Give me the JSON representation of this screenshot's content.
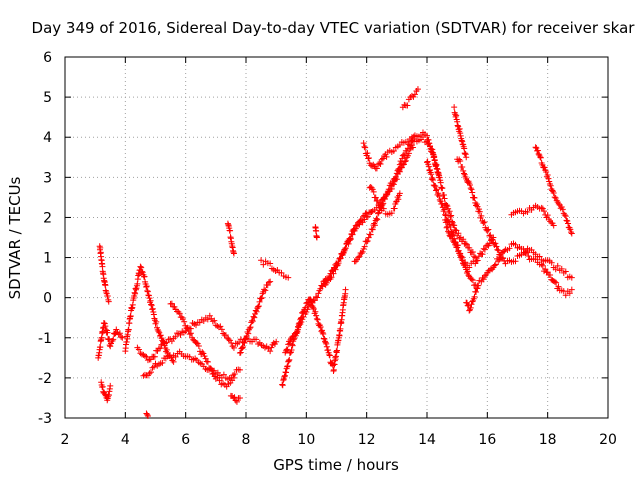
{
  "chart_data": {
    "type": "scatter",
    "title": "Day 349 of 2016, Sidereal Day-to-day VTEC variation (SDTVAR) for receiver skar",
    "xlabel": "GPS time / hours",
    "ylabel": "SDTVAR / TECUs",
    "xlim": [
      2,
      20
    ],
    "ylim": [
      -3,
      6
    ],
    "xticks": [
      "2",
      "4",
      "6",
      "8",
      "10",
      "12",
      "14",
      "16",
      "18",
      "20"
    ],
    "yticks": [
      "-3",
      "-2",
      "-1",
      "0",
      "1",
      "2",
      "3",
      "4",
      "5",
      "6"
    ],
    "grid": true,
    "marker": "+",
    "color": "#ff0000",
    "series": [
      {
        "name": "s1",
        "x": [
          3.1,
          3.3,
          3.5,
          3.7,
          3.9
        ],
        "y": [
          -1.5,
          -0.6,
          -1.2,
          -0.8,
          -1.0
        ]
      },
      {
        "name": "s2",
        "x": [
          3.15,
          3.25,
          3.35,
          3.45
        ],
        "y": [
          1.3,
          0.7,
          0.2,
          -0.1
        ]
      },
      {
        "name": "s3",
        "x": [
          3.2,
          3.3,
          3.4,
          3.5
        ],
        "y": [
          -2.1,
          -2.4,
          -2.6,
          -2.2
        ]
      },
      {
        "name": "s4",
        "x": [
          4.0,
          4.2,
          4.4,
          4.5,
          4.6,
          4.8,
          5.0,
          5.2,
          5.4,
          5.6
        ],
        "y": [
          -1.3,
          -0.3,
          0.4,
          0.8,
          0.6,
          0.0,
          -0.6,
          -1.0,
          -1.4,
          -1.6
        ]
      },
      {
        "name": "s5",
        "x": [
          4.4,
          4.8,
          5.2,
          5.6,
          6.0,
          6.4,
          6.8,
          7.2,
          7.6,
          8.0,
          8.4,
          8.8,
          9.0
        ],
        "y": [
          -1.3,
          -1.6,
          -1.2,
          -1.0,
          -0.8,
          -0.6,
          -0.5,
          -0.8,
          -1.2,
          -1.0,
          -1.1,
          -1.3,
          -1.1
        ]
      },
      {
        "name": "s6",
        "x": [
          4.6,
          5.0,
          5.4,
          5.8,
          6.2,
          6.6,
          7.0,
          7.4,
          7.8
        ],
        "y": [
          -2.0,
          -1.7,
          -1.5,
          -1.4,
          -1.5,
          -1.7,
          -1.9,
          -2.0,
          -1.8
        ]
      },
      {
        "name": "s7",
        "x": [
          4.7,
          4.75
        ],
        "y": [
          -2.9,
          -2.95
        ]
      },
      {
        "name": "s8",
        "x": [
          5.5,
          5.8,
          6.1,
          6.4,
          6.7,
          7.0,
          7.3,
          7.6
        ],
        "y": [
          -0.1,
          -0.4,
          -0.8,
          -1.2,
          -1.6,
          -2.0,
          -2.2,
          -2.0
        ]
      },
      {
        "name": "s9",
        "x": [
          7.4,
          7.5,
          7.6
        ],
        "y": [
          1.9,
          1.5,
          1.1
        ]
      },
      {
        "name": "s10",
        "x": [
          7.5,
          7.7,
          7.8
        ],
        "y": [
          -2.4,
          -2.6,
          -2.5
        ]
      },
      {
        "name": "s11",
        "x": [
          7.8,
          8.0,
          8.2,
          8.4,
          8.6,
          8.8
        ],
        "y": [
          -1.4,
          -1.0,
          -0.6,
          -0.2,
          0.2,
          0.4
        ]
      },
      {
        "name": "s12",
        "x": [
          8.5,
          8.8,
          9.1,
          9.4
        ],
        "y": [
          0.9,
          0.8,
          0.6,
          0.5
        ]
      },
      {
        "name": "s13",
        "x": [
          9.2,
          9.4,
          9.6,
          9.8,
          10.0,
          10.2,
          10.4,
          10.6,
          10.8,
          11.0,
          11.2,
          11.4,
          11.6,
          11.8,
          12.0
        ],
        "y": [
          -2.2,
          -1.6,
          -1.0,
          -0.6,
          -0.3,
          -0.1,
          0.1,
          0.4,
          0.6,
          0.8,
          1.1,
          1.4,
          1.7,
          1.9,
          2.1
        ]
      },
      {
        "name": "s14",
        "x": [
          9.3,
          9.5,
          9.7,
          9.9,
          10.1,
          10.3,
          10.5,
          10.7,
          10.9,
          11.1,
          11.3
        ],
        "y": [
          -1.4,
          -1.0,
          -0.8,
          -0.3,
          0.0,
          -0.4,
          -0.8,
          -1.3,
          -1.8,
          -0.9,
          0.2
        ]
      },
      {
        "name": "s15",
        "x": [
          10.3,
          10.35
        ],
        "y": [
          1.8,
          1.5
        ]
      },
      {
        "name": "s16",
        "x": [
          10.6,
          10.8,
          11.0,
          11.2,
          11.4,
          11.6,
          11.8,
          12.0,
          12.2,
          12.4,
          12.6,
          12.8,
          13.0,
          13.2,
          13.4,
          13.6,
          13.8,
          14.0,
          14.2,
          14.4
        ],
        "y": [
          0.3,
          0.5,
          0.8,
          1.1,
          1.4,
          1.7,
          1.9,
          2.0,
          2.2,
          2.3,
          2.5,
          2.7,
          3.0,
          3.3,
          3.6,
          3.9,
          4.0,
          3.9,
          3.6,
          3.0
        ]
      },
      {
        "name": "s17",
        "x": [
          11.6,
          11.8,
          12.0,
          12.2,
          12.4,
          12.6,
          12.8,
          13.0,
          13.2,
          13.4,
          13.6,
          13.8,
          14.0,
          14.2,
          14.4,
          14.6,
          14.8,
          15.0,
          15.2,
          15.4,
          15.6
        ],
        "y": [
          0.9,
          1.1,
          1.4,
          1.7,
          2.1,
          2.5,
          2.8,
          3.1,
          3.5,
          3.8,
          4.0,
          4.1,
          4.0,
          3.6,
          3.0,
          2.4,
          2.0,
          1.6,
          1.4,
          1.2,
          1.0
        ]
      },
      {
        "name": "s18",
        "x": [
          11.9,
          12.1,
          12.3,
          12.5,
          12.7,
          12.9,
          13.1,
          13.3,
          13.5
        ],
        "y": [
          3.8,
          3.4,
          3.2,
          3.4,
          3.6,
          3.7,
          3.8,
          3.9,
          4.0
        ]
      },
      {
        "name": "s19",
        "x": [
          12.1,
          12.3,
          12.5,
          12.7,
          12.9,
          13.1
        ],
        "y": [
          2.8,
          2.5,
          2.2,
          2.1,
          2.2,
          2.6
        ]
      },
      {
        "name": "s20",
        "x": [
          13.2,
          13.3,
          13.4,
          13.5,
          13.6,
          13.7
        ],
        "y": [
          4.7,
          4.8,
          4.9,
          5.0,
          5.1,
          5.2
        ]
      },
      {
        "name": "s21",
        "x": [
          14.0,
          14.2,
          14.4,
          14.6,
          14.8,
          15.0,
          15.2,
          15.4,
          15.6,
          15.8,
          16.0,
          16.2,
          16.4,
          16.6,
          16.8,
          17.0,
          17.2,
          17.4,
          17.6,
          17.8,
          18.0,
          18.2,
          18.4,
          18.6,
          18.8
        ],
        "y": [
          3.4,
          2.9,
          2.5,
          2.1,
          1.7,
          1.3,
          0.9,
          0.5,
          0.3,
          0.4,
          0.6,
          0.8,
          1.0,
          1.2,
          1.3,
          1.3,
          1.2,
          1.0,
          0.9,
          0.8,
          0.6,
          0.4,
          0.2,
          0.1,
          0.2
        ]
      },
      {
        "name": "s22",
        "x": [
          14.6,
          14.8,
          15.0,
          15.2,
          15.4,
          15.6,
          15.8,
          16.0,
          16.2
        ],
        "y": [
          1.9,
          1.5,
          1.2,
          0.9,
          0.8,
          0.9,
          1.1,
          1.3,
          1.5
        ]
      },
      {
        "name": "s23",
        "x": [
          14.9,
          15.0,
          15.1,
          15.2,
          15.3
        ],
        "y": [
          4.7,
          4.4,
          4.1,
          3.8,
          3.5
        ]
      },
      {
        "name": "s24",
        "x": [
          15.0,
          15.2,
          15.4,
          15.6,
          15.8,
          16.0,
          16.2,
          16.4,
          16.6,
          16.8,
          17.0,
          17.2,
          17.4,
          17.6,
          17.8,
          18.0,
          18.2,
          18.4,
          18.6,
          18.8
        ],
        "y": [
          3.5,
          3.2,
          2.8,
          2.4,
          2.0,
          1.7,
          1.4,
          1.1,
          0.9,
          0.9,
          1.0,
          1.1,
          1.2,
          1.1,
          1.0,
          0.9,
          0.8,
          0.7,
          0.6,
          0.5
        ]
      },
      {
        "name": "s25",
        "x": [
          15.3,
          15.4,
          15.5,
          15.6,
          15.7
        ],
        "y": [
          -0.1,
          -0.3,
          -0.1,
          0.1,
          0.3
        ]
      },
      {
        "name": "s26",
        "x": [
          16.8,
          17.0,
          17.2,
          17.4,
          17.6,
          17.8,
          18.0,
          18.2
        ],
        "y": [
          2.1,
          2.2,
          2.1,
          2.2,
          2.3,
          2.2,
          2.0,
          1.8
        ]
      },
      {
        "name": "s27",
        "x": [
          17.6,
          17.8,
          18.0,
          18.2,
          18.4,
          18.6,
          18.8
        ],
        "y": [
          3.8,
          3.4,
          3.0,
          2.6,
          2.3,
          2.0,
          1.6
        ]
      }
    ]
  }
}
